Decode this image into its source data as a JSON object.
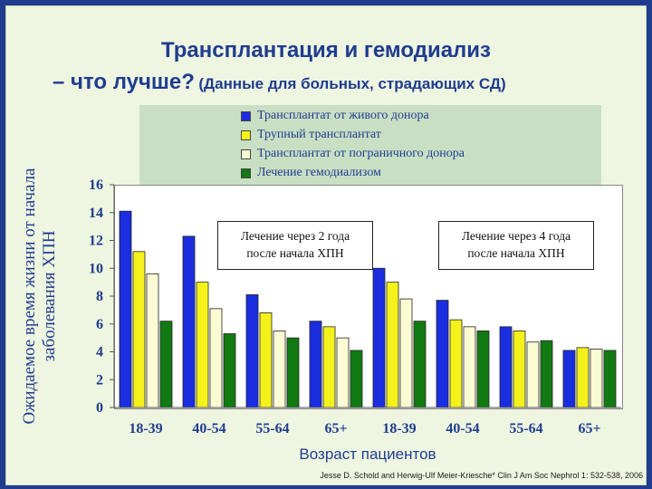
{
  "title": {
    "line1": "Трансплантация и гемодиализ",
    "line2_main": "– что лучше?",
    "line2_sub": "(Данные для больных, страдающих СД)"
  },
  "annotations": {
    "left": {
      "line1": "Лечение через 2 года",
      "line2": "после начала ХПН"
    },
    "right": {
      "line1": "Лечение через 4 года",
      "line2": "после начала ХПН"
    }
  },
  "citation": "Jesse D. Schold and Herwig-Ulf Meier-Kriesche* Clin J Am Soc Nephrol 1: 532-538, 2006",
  "chart_data": {
    "type": "bar",
    "categories": [
      "18-39",
      "40-54",
      "55-64",
      "65+",
      "18-39",
      "40-54",
      "55-64",
      "65+"
    ],
    "series": [
      {
        "name": "Трансплантат от живого донора",
        "color": "#1a2ee0",
        "values": [
          14.1,
          12.3,
          8.1,
          6.2,
          10.0,
          7.7,
          5.8,
          4.1
        ]
      },
      {
        "name": "Трупный трансплантат",
        "color": "#f4f21a",
        "values": [
          11.2,
          9.0,
          6.8,
          5.8,
          9.0,
          6.3,
          5.5,
          4.3
        ]
      },
      {
        "name": "Трансплантат от пограничного донора",
        "color": "#fcfcd4",
        "values": [
          9.6,
          7.1,
          5.5,
          5.0,
          7.8,
          5.8,
          4.7,
          4.2
        ]
      },
      {
        "name": "Лечение гемодиализом",
        "color": "#127a12",
        "values": [
          6.2,
          5.3,
          5.0,
          4.1,
          6.2,
          5.5,
          4.8,
          4.1
        ]
      }
    ],
    "xlabel": "Возраст пациентов",
    "ylabel_line1": "Ожидаемое время жизни от начала",
    "ylabel_line2": "заболевания ХПН",
    "ylim": [
      0,
      16
    ],
    "yticks": [
      "0",
      "2",
      "4",
      "6",
      "8",
      "10",
      "12",
      "14",
      "16"
    ],
    "grid": false,
    "legend_position": "top"
  }
}
